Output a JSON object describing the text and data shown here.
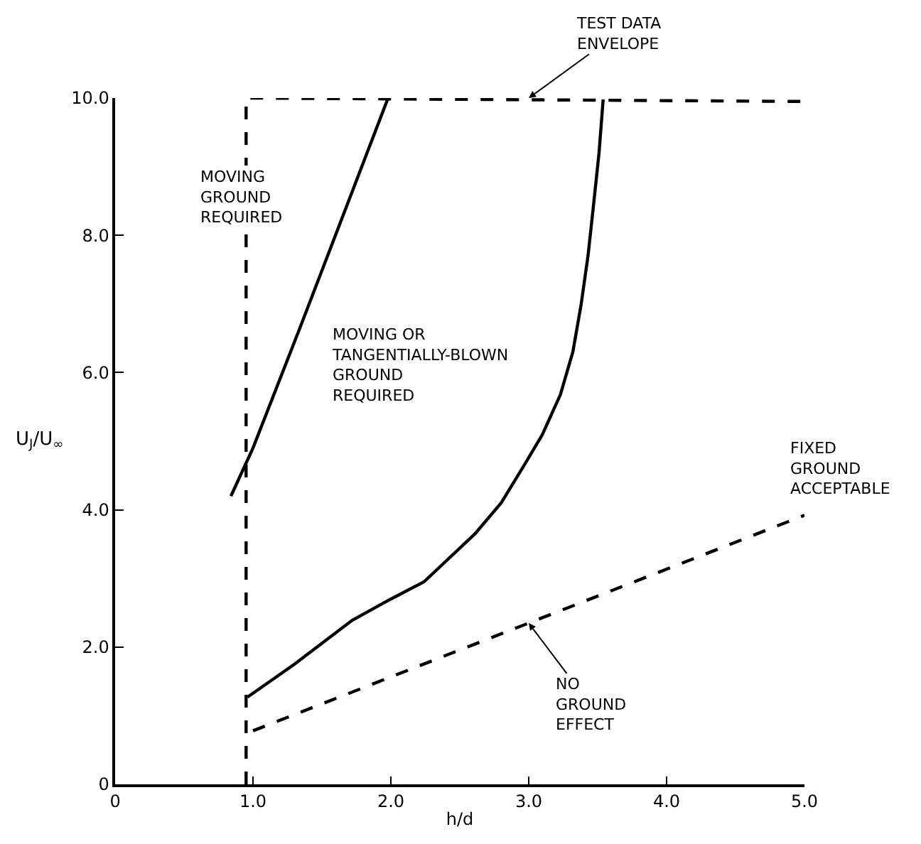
{
  "chart_data": {
    "type": "line",
    "xlabel": "h/d",
    "ylabel": "U$_{J}$/U$_{∞}$",
    "xlim": [
      0,
      5
    ],
    "ylim": [
      0,
      10
    ],
    "xticks": [
      0,
      {
        "value": 1,
        "label": "1.0"
      },
      {
        "value": 2,
        "label": "2.0"
      },
      {
        "value": 3,
        "label": "3.0"
      },
      {
        "value": 4,
        "label": "4.0"
      },
      {
        "value": 5,
        "label": "5.0"
      }
    ],
    "yticks": [
      0,
      {
        "value": 2,
        "label": "2.0"
      },
      {
        "value": 4,
        "label": "4.0"
      },
      {
        "value": 6,
        "label": "6.0"
      },
      {
        "value": 8,
        "label": "8.0"
      },
      {
        "value": 10,
        "label": "10.0"
      }
    ],
    "marker": "none",
    "series": [
      {
        "color": "#000000",
        "line_style": "dashed",
        "x": [
          0.95,
          0.95,
          5.0
        ],
        "values": [
          0,
          10,
          9.95
        ]
      },
      {
        "color": "#000000",
        "line_style": "solid",
        "x": [
          0.84,
          1.0,
          1.35,
          1.98
        ],
        "values": [
          4.2,
          4.9,
          6.7,
          10.0
        ]
      },
      {
        "color": "#000000",
        "line_style": "solid",
        "x": [
          0.96,
          1.3,
          1.72,
          2.0,
          2.24,
          2.61,
          2.8,
          2.97,
          3.1,
          3.23,
          3.32,
          3.38,
          3.43,
          3.47,
          3.51,
          3.54
        ],
        "values": [
          1.27,
          1.75,
          2.39,
          2.7,
          2.95,
          3.65,
          4.1,
          4.66,
          5.1,
          5.68,
          6.3,
          6.99,
          7.7,
          8.44,
          9.2,
          9.98
        ]
      },
      {
        "color": "#000000",
        "line_style": "dashed",
        "x": [
          1.0,
          5.0
        ],
        "values": [
          0.78,
          3.92
        ]
      }
    ],
    "annotations": [
      {
        "text": "TEST DATA ENVELOPE",
        "x": 3.0,
        "y": 10.0
      },
      "MOVING GROUND REQUIRED",
      "MOVING OR TANGENTIALLY-BLOWN GROUND REQUIRED",
      "FIXED GROUND ACCEPTABLE",
      {
        "text": "NO GROUND EFFECT",
        "x": 3.0,
        "y": 2.35
      }
    ]
  }
}
